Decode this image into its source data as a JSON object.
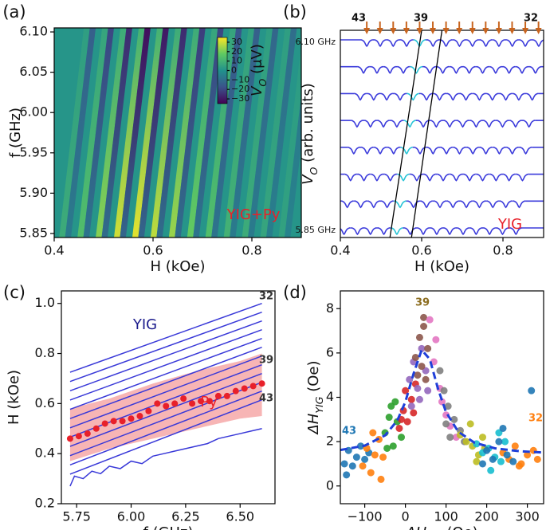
{
  "chart_data": [
    {
      "type": "heatmap",
      "panel_label": "(a)",
      "xlabel": "H (kOe)",
      "ylabel": "f (GHz)",
      "xlim": [
        0.4,
        0.9
      ],
      "ylim": [
        5.845,
        6.105
      ],
      "xticks": [
        0.4,
        0.6,
        0.8
      ],
      "yticks": [
        {
          "value": 5.85,
          "label": "5.85"
        },
        {
          "value": 5.9,
          "label": "5.90"
        },
        {
          "value": 5.95,
          "label": "5.95"
        },
        {
          "value": 6.0,
          "label": "6.00"
        },
        {
          "value": 6.05,
          "label": "6.05"
        },
        {
          "value": 6.1,
          "label": "6.10"
        }
      ],
      "clim": [
        -35,
        35
      ],
      "colorbar_ticks": [
        30,
        20,
        10,
        0,
        {
          "value": -10,
          "label": "−10"
        },
        {
          "value": -20,
          "label": "−20"
        },
        {
          "value": -30,
          "label": "−30"
        }
      ],
      "colorbar_label": {
        "main": "V",
        "sub": "O",
        "rest": " (μV)"
      },
      "annotation": "YIG+Py",
      "annotation_color": "#e8202a",
      "ridges": [
        {
          "H": [
            0.41,
            0.46
          ],
          "V": [
            8,
            4
          ],
          "V_dip": [
            -6,
            -14
          ]
        },
        {
          "H": [
            0.447,
            0.497
          ],
          "V": [
            14,
            6
          ],
          "V_dip": [
            -8,
            -20
          ]
        },
        {
          "H": [
            0.484,
            0.534
          ],
          "V": [
            22,
            8
          ],
          "V_dip": [
            -10,
            -26
          ]
        },
        {
          "H": [
            0.521,
            0.571
          ],
          "V": [
            30,
            10
          ],
          "V_dip": [
            -12,
            -32
          ]
        },
        {
          "H": [
            0.558,
            0.608
          ],
          "V": [
            32,
            10
          ],
          "V_dip": [
            -12,
            -30
          ]
        },
        {
          "H": [
            0.595,
            0.645
          ],
          "V": [
            28,
            8
          ],
          "V_dip": [
            -10,
            -26
          ]
        },
        {
          "H": [
            0.632,
            0.682
          ],
          "V": [
            24,
            8
          ],
          "V_dip": [
            -10,
            -22
          ]
        },
        {
          "H": [
            0.669,
            0.719
          ],
          "V": [
            18,
            6
          ],
          "V_dip": [
            -8,
            -20
          ]
        },
        {
          "H": [
            0.706,
            0.756
          ],
          "V": [
            14,
            6
          ],
          "V_dip": [
            -8,
            -16
          ]
        },
        {
          "H": [
            0.743,
            0.793
          ],
          "V": [
            10,
            5
          ],
          "V_dip": [
            -6,
            -14
          ]
        },
        {
          "H": [
            0.78,
            0.83
          ],
          "V": [
            8,
            4
          ],
          "V_dip": [
            -6,
            -12
          ]
        },
        {
          "H": [
            0.817,
            0.867
          ],
          "V": [
            6,
            4
          ],
          "V_dip": [
            -5,
            -10
          ]
        },
        {
          "H": [
            0.854,
            0.904
          ],
          "V": [
            5,
            3
          ],
          "V_dip": [
            -4,
            -8
          ]
        }
      ]
    },
    {
      "type": "waterfall",
      "panel_label": "(b)",
      "xlabel": "H (kOe)",
      "ylabel": {
        "main": "V",
        "sub": "O",
        "rest": " (arb. units)"
      },
      "xlim": [
        0.4,
        0.9
      ],
      "xticks": [
        0.4,
        0.6,
        0.8
      ],
      "trace_labels": [
        "6.10 GHz",
        "5.85 GHz"
      ],
      "color": "#3b3bdb",
      "highlight_color": "#27c4d6",
      "highlight_mode": 4,
      "arrows": [
        0.465,
        0.4975,
        0.53,
        0.5625,
        0.595,
        0.6275,
        0.66,
        0.6925,
        0.725,
        0.7575,
        0.79,
        0.8225,
        0.855,
        0.8875
      ],
      "arrow_color": "#c8641e",
      "mode_labels": [
        "43",
        "39",
        "32"
      ],
      "annotation": "YIG",
      "annotation_color": "#e8202a",
      "guide_lines": [
        {
          "H": [
            0.6,
            0.522
          ]
        },
        {
          "H": [
            0.65,
            0.575
          ]
        }
      ],
      "traces": [
        [
          0.465,
          0.498,
          0.53,
          0.563,
          0.595,
          0.628,
          0.66,
          0.693,
          0.725,
          0.758,
          0.79,
          0.823,
          0.855,
          0.888
        ],
        [
          0.457,
          0.49,
          0.522,
          0.555,
          0.587,
          0.62,
          0.652,
          0.685,
          0.717,
          0.75,
          0.782,
          0.815,
          0.847,
          0.88
        ],
        [
          0.449,
          0.482,
          0.514,
          0.547,
          0.579,
          0.612,
          0.644,
          0.677,
          0.709,
          0.742,
          0.774,
          0.807,
          0.839,
          0.872
        ],
        [
          0.441,
          0.474,
          0.506,
          0.539,
          0.571,
          0.604,
          0.636,
          0.669,
          0.701,
          0.734,
          0.766,
          0.799,
          0.831,
          0.864
        ],
        [
          0.433,
          0.466,
          0.498,
          0.531,
          0.563,
          0.596,
          0.628,
          0.661,
          0.693,
          0.726,
          0.758,
          0.791,
          0.823,
          0.856
        ],
        [
          0.425,
          0.458,
          0.49,
          0.523,
          0.555,
          0.588,
          0.62,
          0.653,
          0.685,
          0.718,
          0.75,
          0.783,
          0.815,
          0.848
        ],
        [
          0.417,
          0.45,
          0.482,
          0.515,
          0.547,
          0.58,
          0.612,
          0.645,
          0.677,
          0.71,
          0.742,
          0.775,
          0.807,
          0.84
        ],
        [
          0.409,
          0.442,
          0.474,
          0.507,
          0.539,
          0.572,
          0.604,
          0.637,
          0.669,
          0.702,
          0.734,
          0.767,
          0.799,
          0.832
        ]
      ]
    },
    {
      "type": "line",
      "panel_label": "(c)",
      "xlabel": "f (GHz)",
      "ylabel": "H (kOe)",
      "xlim": [
        5.68,
        6.66
      ],
      "ylim": [
        0.2,
        1.05
      ],
      "xticks": [
        {
          "value": 5.75,
          "label": "5.75"
        },
        {
          "value": 6.0,
          "label": "6.00"
        },
        {
          "value": 6.25,
          "label": "6.25"
        },
        {
          "value": 6.5,
          "label": "6.50"
        }
      ],
      "yticks": [
        0.2,
        0.4,
        0.6,
        0.8,
        {
          "value": 1.0,
          "label": "1.0"
        }
      ],
      "band": {
        "x": [
          5.72,
          5.9,
          6.1,
          6.3,
          6.5,
          6.6
        ],
        "lower": [
          0.37,
          0.42,
          0.46,
          0.5,
          0.54,
          0.55
        ],
        "upper": [
          0.58,
          0.62,
          0.68,
          0.73,
          0.77,
          0.8
        ],
        "color": "#f6a8a8"
      },
      "yig_lines": {
        "x": [
          5.72,
          6.6
        ],
        "color": "#3838d8",
        "series": [
          [
            0.725,
            1.0
          ],
          [
            0.688,
            0.965
          ],
          [
            0.651,
            0.93
          ],
          [
            0.614,
            0.895
          ],
          [
            0.577,
            0.86
          ],
          [
            0.54,
            0.825
          ],
          [
            0.503,
            0.79
          ],
          [
            0.466,
            0.755
          ],
          [
            0.429,
            0.72
          ],
          [
            0.392,
            0.685
          ],
          [
            0.355,
            0.65
          ],
          [
            0.318,
            0.615
          ]
        ]
      },
      "noisy_line": {
        "x": [
          5.72,
          5.74,
          5.78,
          5.82,
          5.86,
          5.9,
          5.95,
          6.0,
          6.05,
          6.1,
          6.15,
          6.2,
          6.25,
          6.3,
          6.35,
          6.4,
          6.45,
          6.5,
          6.55,
          6.6
        ],
        "values": [
          0.27,
          0.31,
          0.3,
          0.33,
          0.32,
          0.35,
          0.34,
          0.37,
          0.36,
          0.39,
          0.4,
          0.41,
          0.42,
          0.43,
          0.44,
          0.46,
          0.47,
          0.48,
          0.49,
          0.5
        ],
        "color": "#3838d8"
      },
      "py": {
        "x": [
          5.72,
          5.76,
          5.8,
          5.84,
          5.88,
          5.92,
          5.96,
          6.0,
          6.04,
          6.08,
          6.12,
          6.16,
          6.2,
          6.24,
          6.28,
          6.32,
          6.36,
          6.4,
          6.44,
          6.48,
          6.52,
          6.56,
          6.6
        ],
        "values": [
          0.46,
          0.47,
          0.48,
          0.5,
          0.52,
          0.53,
          0.53,
          0.54,
          0.55,
          0.57,
          0.6,
          0.59,
          0.6,
          0.62,
          0.6,
          0.61,
          0.61,
          0.63,
          0.63,
          0.65,
          0.66,
          0.67,
          0.68
        ],
        "color": "#e8202a"
      },
      "annotations": [
        {
          "text": "YIG",
          "color": "#1a1a8c"
        },
        {
          "text": "Py",
          "color": "#e8202a"
        },
        {
          "text": "32",
          "color": "#333333"
        },
        {
          "text": "39",
          "color": "#333333"
        },
        {
          "text": "43",
          "color": "#333333"
        }
      ]
    },
    {
      "type": "scatter",
      "panel_label": "(d)",
      "xlabel": {
        "main": "ΔH",
        "sub": "res",
        "rest": " (Oe)"
      },
      "ylabel": {
        "main": "ΔH",
        "sub": "YIG",
        "rest": " (Oe)"
      },
      "xlim": [
        -160,
        340
      ],
      "ylim": [
        -0.8,
        8.8
      ],
      "xticks": [
        {
          "value": -100,
          "label": "−100"
        },
        0,
        100,
        200,
        300
      ],
      "yticks": [
        0,
        2,
        4,
        6,
        8
      ],
      "series": [
        {
          "color": "#1f77b4",
          "x": [
            -150,
            -140,
            -130,
            -120,
            -110,
            -100,
            -90,
            -145
          ],
          "values": [
            1.0,
            1.6,
            0.9,
            1.3,
            1.8,
            1.2,
            1.5,
            0.5
          ]
        },
        {
          "color": "#ff7f0e",
          "x": [
            -105,
            -95,
            -85,
            -75,
            -65,
            -55,
            -80,
            -60
          ],
          "values": [
            0.9,
            1.7,
            0.6,
            1.4,
            2.1,
            1.3,
            2.4,
            0.3
          ]
        },
        {
          "color": "#2ca02c",
          "x": [
            -50,
            -40,
            -30,
            -20,
            -35,
            -10,
            -45,
            -25
          ],
          "values": [
            2.4,
            3.1,
            1.8,
            2.9,
            3.6,
            2.2,
            1.7,
            3.8
          ]
        },
        {
          "color": "#d62728",
          "x": [
            -15,
            -5,
            5,
            15,
            0,
            20,
            -10,
            25
          ],
          "values": [
            2.6,
            3.4,
            2.9,
            3.9,
            4.3,
            3.3,
            3.0,
            4.6
          ]
        },
        {
          "color": "#9467bd",
          "x": [
            10,
            20,
            30,
            40,
            50,
            35,
            15,
            55
          ],
          "values": [
            4.8,
            5.6,
            4.4,
            6.2,
            5.2,
            3.9,
            3.6,
            4.3
          ]
        },
        {
          "color": "#8c564b",
          "x": [
            25,
            35,
            45,
            40,
            55,
            30,
            50,
            45
          ],
          "values": [
            5.8,
            6.7,
            7.6,
            5.4,
            6.2,
            5.0,
            4.8,
            7.2
          ]
        },
        {
          "color": "#e377c2",
          "x": [
            60,
            70,
            85,
            100,
            110,
            125,
            90,
            75
          ],
          "values": [
            7.5,
            5.6,
            4.4,
            3.2,
            2.7,
            2.2,
            3.8,
            6.6
          ]
        },
        {
          "color": "#7f7f7f",
          "x": [
            85,
            95,
            105,
            120,
            135,
            110,
            145,
            100
          ],
          "values": [
            5.2,
            4.3,
            3.6,
            3.0,
            2.5,
            2.2,
            2.0,
            2.8
          ]
        },
        {
          "color": "#bcbd22",
          "x": [
            135,
            150,
            165,
            180,
            195,
            160,
            175,
            190
          ],
          "values": [
            2.3,
            2.0,
            1.8,
            1.4,
            1.7,
            2.8,
            1.1,
            2.2
          ]
        },
        {
          "color": "#17becf",
          "x": [
            175,
            190,
            205,
            220,
            235,
            245,
            210,
            230
          ],
          "values": [
            1.9,
            1.5,
            1.7,
            1.3,
            1.1,
            2.0,
            0.7,
            2.4
          ]
        },
        {
          "color": "#ff7f0e",
          "x": [
            240,
            255,
            270,
            285,
            300,
            315,
            325,
            280
          ],
          "values": [
            1.5,
            1.2,
            1.8,
            1.0,
            1.4,
            1.6,
            1.2,
            0.9
          ]
        },
        {
          "color": "#1f77b4",
          "x": [
            200,
            215,
            230,
            250,
            265,
            310,
            190,
            240
          ],
          "values": [
            1.6,
            1.2,
            2.0,
            1.4,
            1.1,
            4.3,
            1.0,
            2.6
          ]
        }
      ],
      "fit": {
        "x": [
          -160,
          -100,
          -50,
          -20,
          0,
          20,
          40,
          60,
          80,
          100,
          130,
          170,
          220,
          280,
          340
        ],
        "values": [
          1.62,
          1.82,
          2.28,
          2.95,
          3.8,
          5.06,
          6.14,
          5.72,
          4.4,
          3.33,
          2.45,
          1.95,
          1.7,
          1.57,
          1.51
        ],
        "color": "#1f3fd9"
      },
      "mode_labels": [
        {
          "text": "43",
          "color": "#1f77b4"
        },
        {
          "text": "39",
          "color": "#8c6d1f"
        },
        {
          "text": "32",
          "color": "#ff7f0e"
        }
      ]
    }
  ]
}
